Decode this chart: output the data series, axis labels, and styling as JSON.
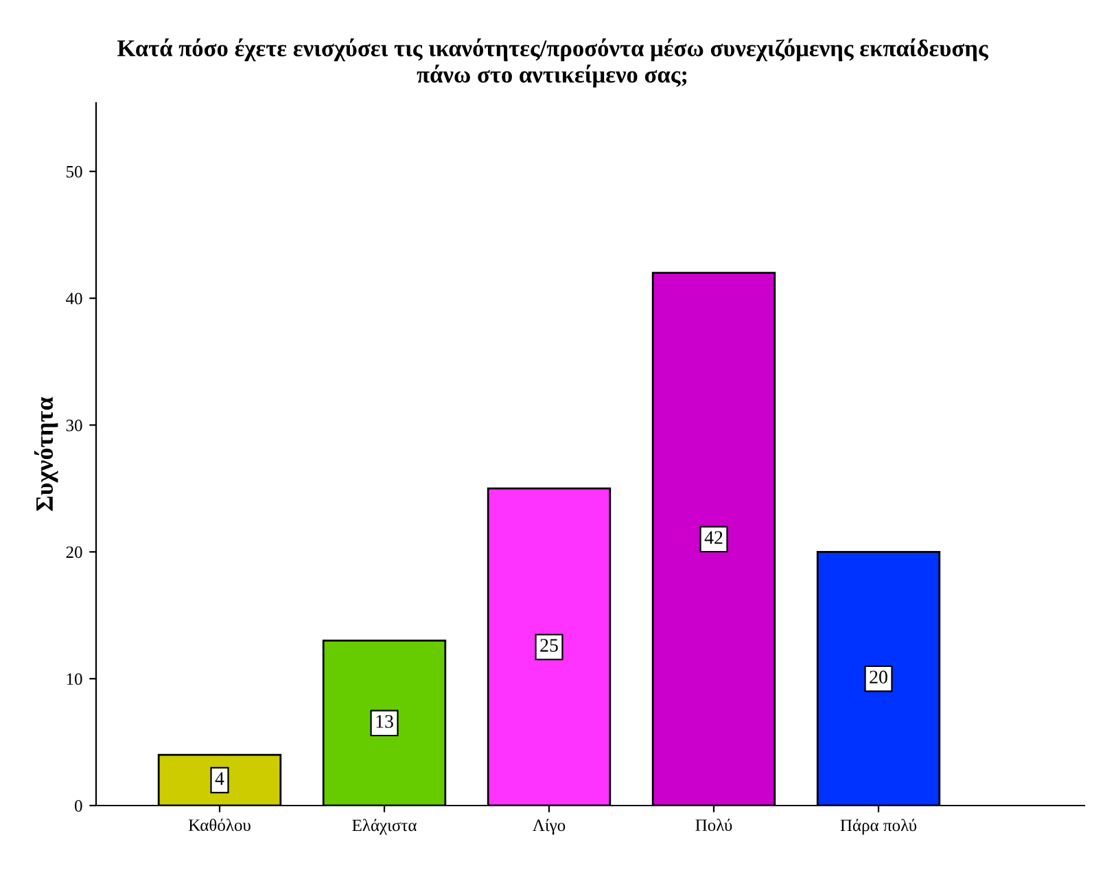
{
  "chart_data": {
    "type": "bar",
    "title": "Κατά πόσο έχετε ενισχύσει τις ικανότητες/προσόντα μέσω συνεχιζόμενης εκπαίδευσης\nπάνω στο αντικείμενο σας;",
    "ylabel": "Συχνότητα",
    "categories": [
      "Καθόλου",
      "Ελάχιστα",
      "Λίγο",
      "Πολύ",
      "Πάρα πολύ"
    ],
    "values": [
      4,
      13,
      25,
      42,
      20
    ],
    "colors": [
      "#cccc00",
      "#66cc00",
      "#ff33ff",
      "#cc00cc",
      "#0033ff"
    ],
    "ylim": [
      0,
      55.4
    ],
    "yticks": [
      0,
      10,
      20,
      30,
      40,
      50
    ],
    "data_labels": true,
    "grid": false,
    "legend": false
  }
}
